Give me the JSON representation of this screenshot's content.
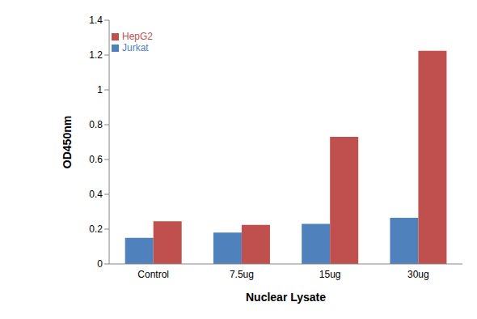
{
  "chart_data": {
    "type": "bar",
    "x_label": "Nuclear Lysate",
    "y_label": "OD450nm",
    "categories": [
      "Control",
      "7.5ug",
      "15ug",
      "30ug"
    ],
    "series": [
      {
        "name": "Jurkat",
        "color": "#4f81bd",
        "values": [
          0.15,
          0.18,
          0.23,
          0.265
        ]
      },
      {
        "name": "HepG2",
        "color": "#c0504d",
        "values": [
          0.245,
          0.225,
          0.73,
          1.225
        ]
      }
    ],
    "ylim": [
      0,
      1.4
    ],
    "yticks": [
      0,
      0.2,
      0.4,
      0.6,
      0.8,
      1,
      1.2,
      1.4
    ],
    "grid": false,
    "legend": "upper left"
  }
}
